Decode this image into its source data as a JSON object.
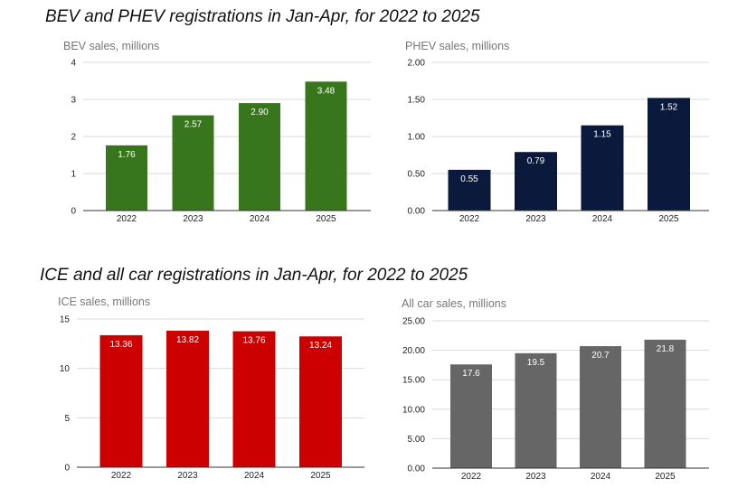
{
  "titles": {
    "top": "BEV and PHEV registrations in Jan-Apr, for 2022 to 2025",
    "bottom": "ICE and all car registrations in Jan-Apr, for 2022 to 2025"
  },
  "chart_data": [
    {
      "id": "bev",
      "type": "bar",
      "title": "BEV sales, millions",
      "categories": [
        "2022",
        "2023",
        "2024",
        "2025"
      ],
      "values": [
        1.76,
        2.57,
        2.9,
        3.48
      ],
      "value_labels": [
        "1.76",
        "2.57",
        "2.90",
        "3.48"
      ],
      "yticks": [
        0,
        1,
        2,
        3,
        4
      ],
      "ytick_labels": [
        "0",
        "1",
        "2",
        "3",
        "4"
      ],
      "ylim": [
        0,
        4
      ],
      "color": "#38761d",
      "grid": true
    },
    {
      "id": "phev",
      "type": "bar",
      "title": "PHEV sales, millions",
      "categories": [
        "2022",
        "2023",
        "2024",
        "2025"
      ],
      "values": [
        0.55,
        0.79,
        1.15,
        1.52
      ],
      "value_labels": [
        "0.55",
        "0.79",
        "1.15",
        "1.52"
      ],
      "yticks": [
        0,
        0.5,
        1,
        1.5,
        2
      ],
      "ytick_labels": [
        "0.00",
        "0.50",
        "1.00",
        "1.50",
        "2.00"
      ],
      "ylim": [
        0,
        2
      ],
      "color": "#0b1a3c",
      "grid": true
    },
    {
      "id": "ice",
      "type": "bar",
      "title": "ICE sales, millions",
      "categories": [
        "2022",
        "2023",
        "2024",
        "2025"
      ],
      "values": [
        13.36,
        13.82,
        13.76,
        13.24
      ],
      "value_labels": [
        "13.36",
        "13.82",
        "13.76",
        "13.24"
      ],
      "yticks": [
        0,
        5,
        10,
        15
      ],
      "ytick_labels": [
        "0",
        "5",
        "10",
        "15"
      ],
      "ylim": [
        0,
        15
      ],
      "color": "#cc0000",
      "grid": true
    },
    {
      "id": "all",
      "type": "bar",
      "title": "All car sales, millions",
      "categories": [
        "2022",
        "2023",
        "2024",
        "2025"
      ],
      "values": [
        17.6,
        19.5,
        20.7,
        21.8
      ],
      "value_labels": [
        "17.6",
        "19.5",
        "20.7",
        "21.8"
      ],
      "yticks": [
        0,
        5,
        10,
        15,
        20,
        25
      ],
      "ytick_labels": [
        "0.00",
        "5.00",
        "10.00",
        "15.00",
        "20.00",
        "25.00"
      ],
      "ylim": [
        0,
        25
      ],
      "color": "#666666",
      "grid": true
    }
  ]
}
